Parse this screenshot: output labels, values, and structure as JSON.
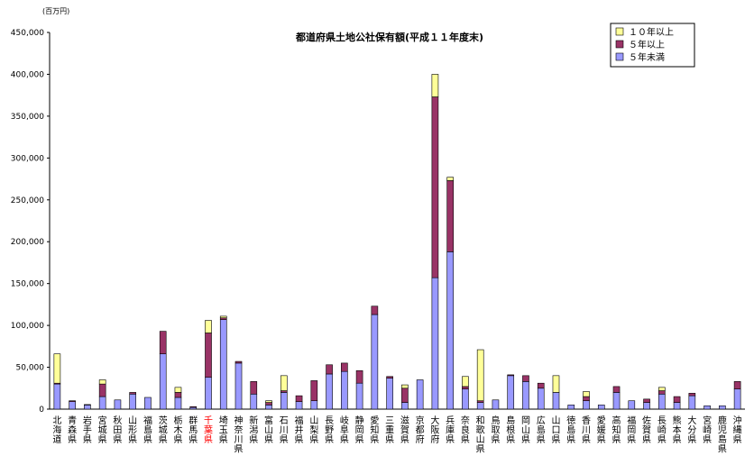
{
  "chart_data": {
    "type": "bar",
    "stacked": true,
    "title": "都道府県土地公社保有額(平成１１年度末)",
    "unit_label": "(百万円)",
    "ylim": [
      0,
      450000
    ],
    "yticks": [
      "0",
      "50,000",
      "100,000",
      "150,000",
      "200,000",
      "250,000",
      "300,000",
      "350,000",
      "400,000",
      "450,000"
    ],
    "highlight_category": "千葉県",
    "highlight_color": "#ff0000",
    "legend_position": "top-right",
    "categories": [
      "北海道",
      "青森県",
      "岩手県",
      "宮城県",
      "秋田県",
      "山形県",
      "福島県",
      "茨城県",
      "栃木県",
      "群馬県",
      "千葉県",
      "埼玉県",
      "神奈川県",
      "新潟県",
      "富山県",
      "石川県",
      "福井県",
      "山梨県",
      "長野県",
      "岐阜県",
      "静岡県",
      "愛知県",
      "三重県",
      "滋賀県",
      "京都府",
      "大阪府",
      "兵庫県",
      "奈良県",
      "和歌山県",
      "鳥取県",
      "島根県",
      "岡山県",
      "広島県",
      "山口県",
      "徳島県",
      "香川県",
      "愛媛県",
      "高知県",
      "福岡県",
      "佐賀県",
      "長崎県",
      "熊本県",
      "大分県",
      "宮崎県",
      "鹿児島県",
      "沖縄県"
    ],
    "series": [
      {
        "name": "５年未満",
        "color": "#9999ff",
        "values": [
          30000,
          9000,
          5000,
          15000,
          11000,
          18000,
          14000,
          66000,
          14000,
          2000,
          38000,
          107000,
          55000,
          18000,
          5000,
          20000,
          9000,
          10000,
          42000,
          45000,
          31000,
          113000,
          37000,
          8000,
          35000,
          157000,
          188000,
          24000,
          8000,
          11000,
          40000,
          33000,
          25000,
          20000,
          5000,
          10000,
          5000,
          20000,
          10000,
          8000,
          18000,
          8000,
          16000,
          4000,
          4000,
          24000
        ]
      },
      {
        "name": "５年以上",
        "color": "#993366",
        "values": [
          1000,
          1000,
          500,
          15000,
          0,
          2000,
          0,
          27000,
          6000,
          1000,
          53000,
          2000,
          2000,
          15000,
          3000,
          2000,
          7000,
          24000,
          11000,
          10000,
          15000,
          10000,
          2000,
          17000,
          0,
          216000,
          85000,
          3000,
          2000,
          0,
          1000,
          7000,
          6000,
          0,
          0,
          5000,
          0,
          7000,
          0,
          4000,
          4000,
          7000,
          3000,
          0,
          0,
          9000
        ]
      },
      {
        "name": "１０年以上",
        "color": "#ffff99",
        "values": [
          35000,
          0,
          0,
          5000,
          0,
          0,
          0,
          0,
          6000,
          0,
          15000,
          2000,
          0,
          0,
          2000,
          18000,
          0,
          0,
          0,
          0,
          0,
          0,
          0,
          4000,
          0,
          27000,
          4000,
          12000,
          61000,
          0,
          0,
          0,
          0,
          20000,
          0,
          6000,
          0,
          0,
          0,
          0,
          4000,
          0,
          0,
          0,
          0,
          0
        ]
      }
    ],
    "legend": [
      "１０年以上",
      "５年以上",
      "５年未満"
    ]
  }
}
